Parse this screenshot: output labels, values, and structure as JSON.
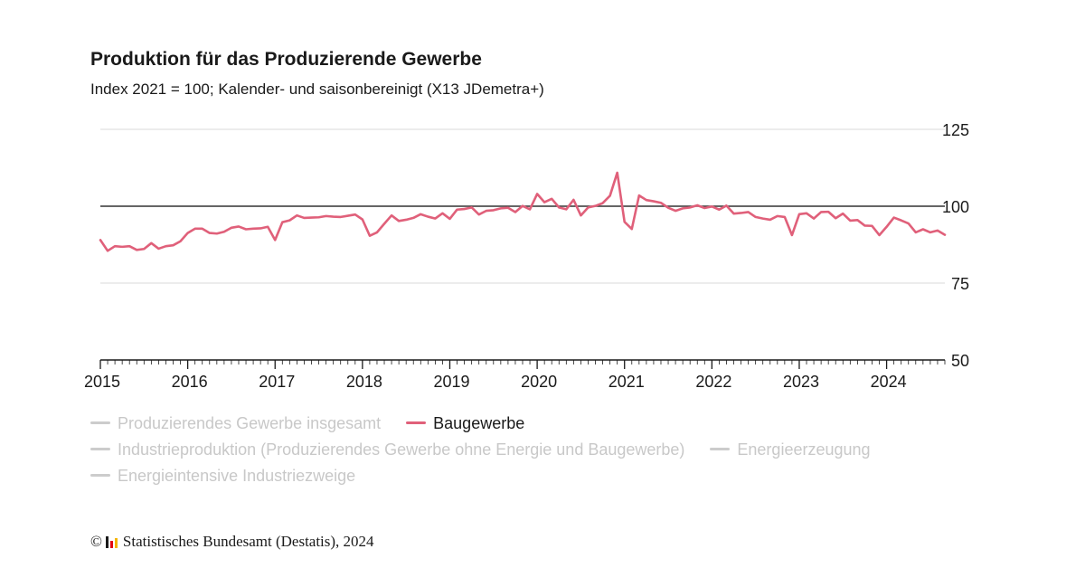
{
  "header": {
    "title": "Produktion für das Produzierende Gewerbe",
    "subtitle": "Index 2021 = 100; Kalender- und saisonbereinigt (X13 JDemetra+)"
  },
  "legend": {
    "rows": [
      [
        {
          "label": "Produzierendes Gewerbe insgesamt",
          "active": false
        },
        {
          "label": "Baugewerbe",
          "active": true
        }
      ],
      [
        {
          "label": "Industrieproduktion (Produzierendes Gewerbe ohne Energie und Baugewerbe)",
          "active": false
        },
        {
          "label": "Energieerzeugung",
          "active": false
        }
      ],
      [
        {
          "label": "Energieintensive Industriezweige",
          "active": false
        }
      ]
    ]
  },
  "source": {
    "copyright": "©",
    "text": "Statistisches Bundesamt (Destatis), 2024"
  },
  "colors": {
    "active_series": "#e0607a",
    "inactive_series": "#cccccc",
    "inactive_text": "#c8c8c8",
    "grid": "#d9d9d9",
    "reference_line": "#333333",
    "logo": [
      "#1a1a1a",
      "#e30613",
      "#f5b400"
    ]
  },
  "chart_data": {
    "type": "line",
    "yticks": [
      50,
      75,
      100,
      125
    ],
    "ylim": [
      50,
      125
    ],
    "reference_value": 100,
    "xticks": [
      "2015",
      "2016",
      "2017",
      "2018",
      "2019",
      "2020",
      "2021",
      "2022",
      "2023",
      "2024"
    ],
    "x_start": "2015-01",
    "series": [
      {
        "name": "Baugewerbe",
        "values": [
          89.0,
          85.5,
          87.0,
          86.8,
          87.0,
          85.8,
          86.1,
          88.0,
          86.2,
          87.0,
          87.3,
          88.6,
          91.3,
          92.7,
          92.7,
          91.3,
          91.1,
          91.7,
          93.0,
          93.4,
          92.5,
          92.7,
          92.8,
          93.3,
          89.0,
          94.8,
          95.4,
          97.0,
          96.2,
          96.3,
          96.4,
          96.8,
          96.6,
          96.5,
          96.9,
          97.3,
          95.7,
          90.4,
          91.5,
          94.3,
          97.0,
          95.2,
          95.6,
          96.2,
          97.4,
          96.6,
          96.0,
          97.7,
          95.9,
          98.9,
          99.1,
          99.6,
          97.3,
          98.5,
          98.7,
          99.3,
          99.5,
          98.1,
          100.1,
          99.0,
          104.0,
          101.3,
          102.4,
          99.6,
          99.0,
          102.1,
          97.0,
          99.6,
          100.1,
          101.0,
          103.4,
          110.9,
          94.9,
          92.6,
          103.5,
          102.0,
          101.6,
          101.1,
          99.5,
          98.5,
          99.3,
          99.6,
          100.3,
          99.4,
          99.9,
          98.9,
          100.2,
          97.6,
          97.8,
          98.1,
          96.5,
          96.0,
          95.6,
          96.8,
          96.5,
          90.6,
          97.4,
          97.7,
          96.0,
          98.1,
          98.2,
          96.1,
          97.6,
          95.3,
          95.5,
          93.7,
          93.6,
          90.6,
          93.3,
          96.3,
          95.4,
          94.4,
          91.5,
          92.5,
          91.5,
          92.1,
          90.7
        ]
      }
    ]
  }
}
